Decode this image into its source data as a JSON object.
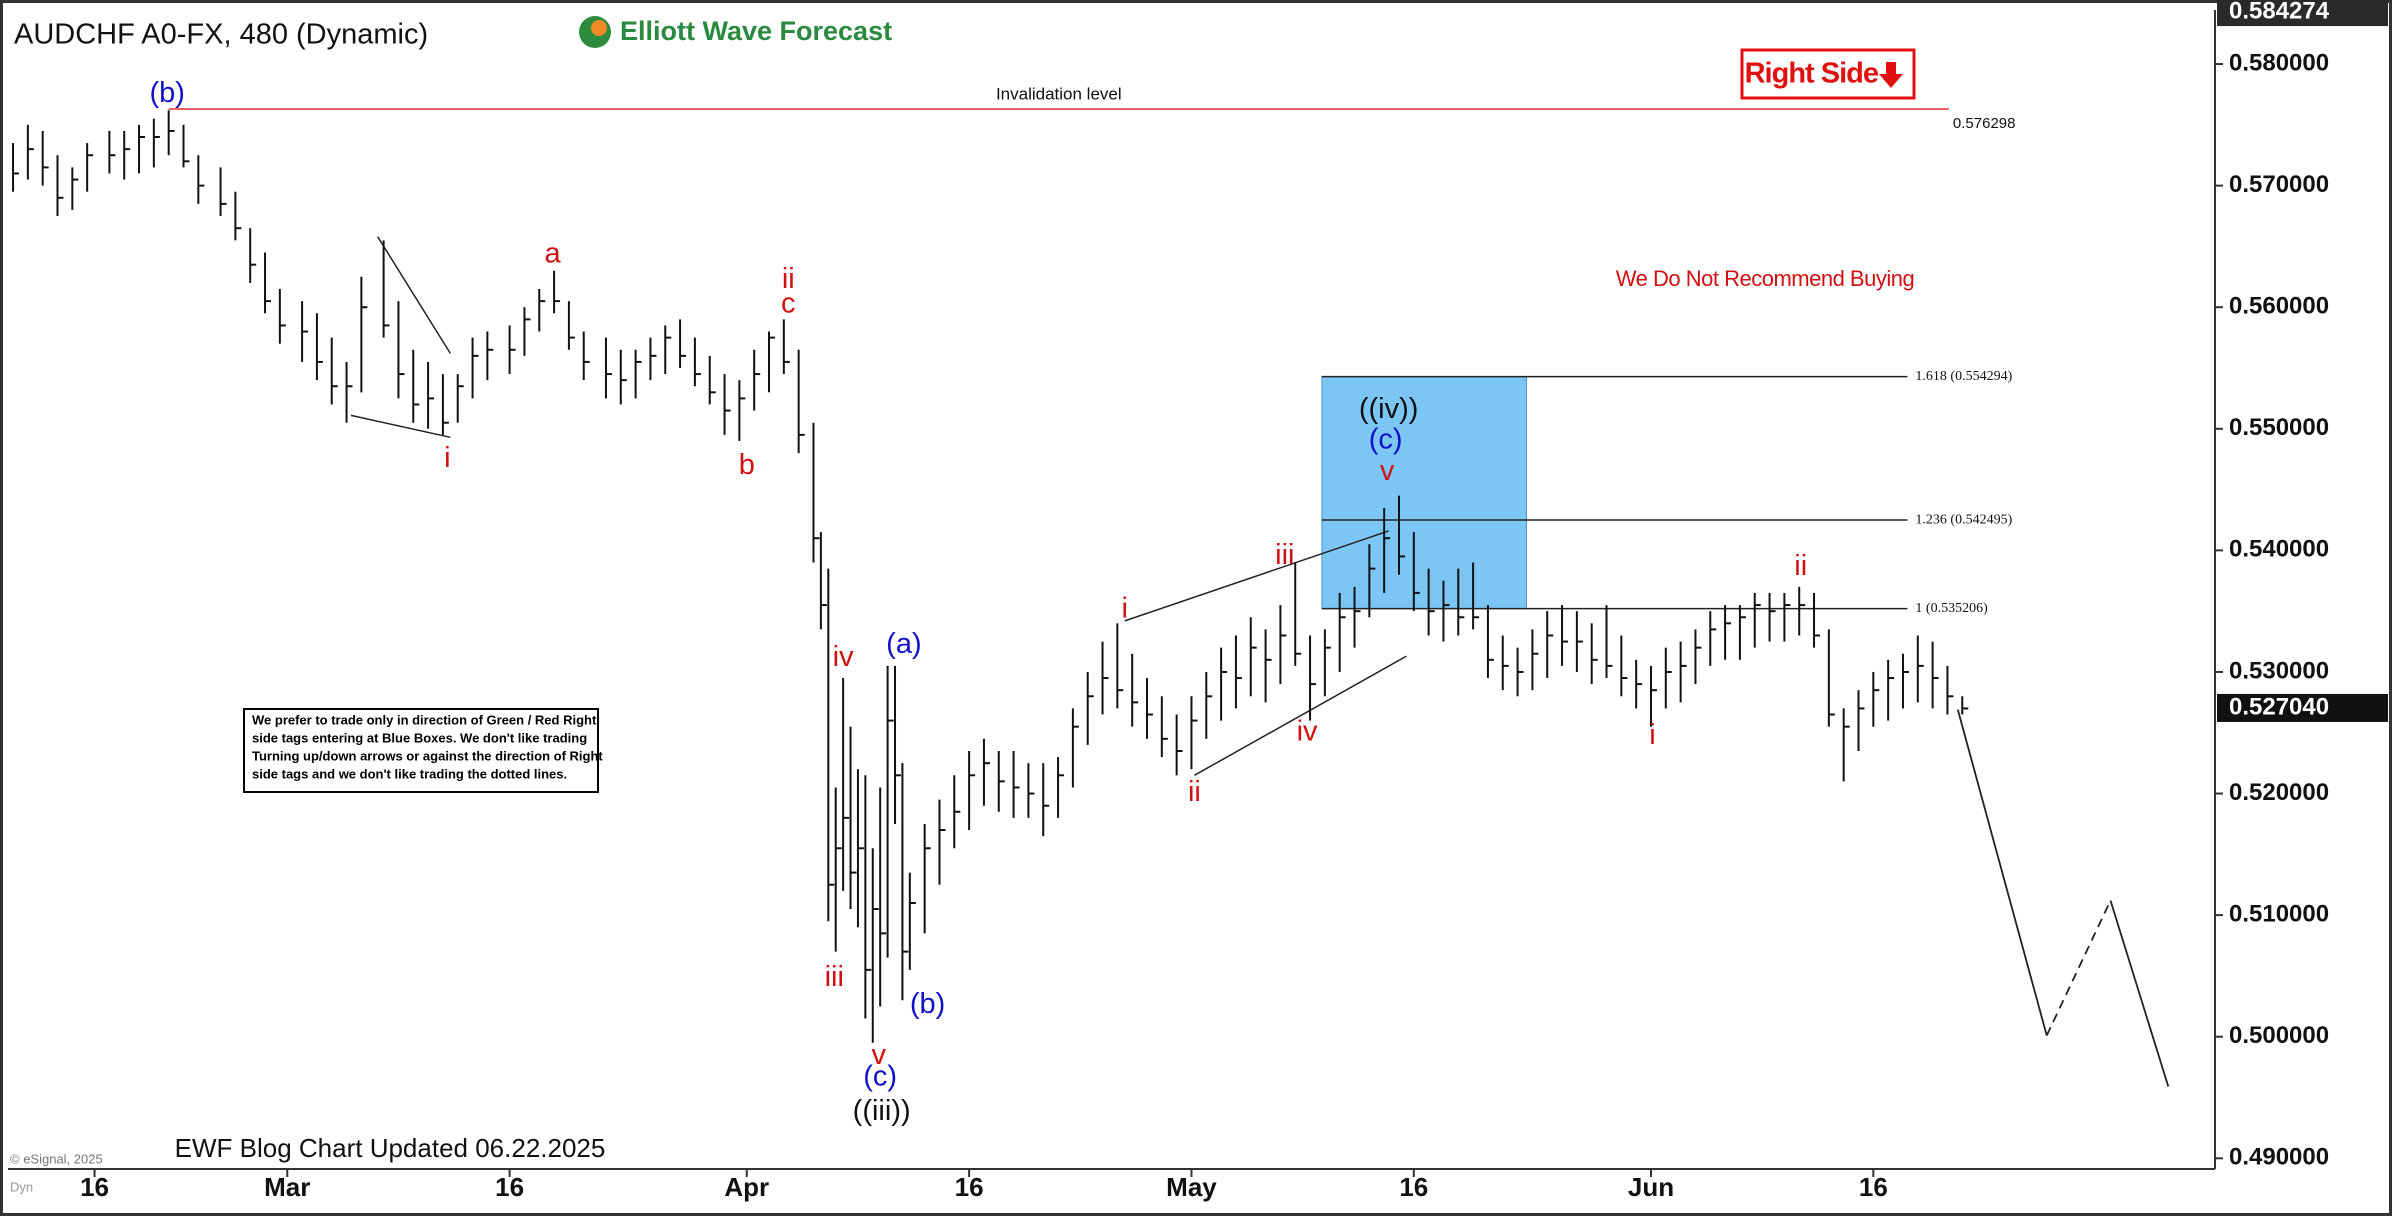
{
  "chart_data": {
    "type": "ohlc",
    "title": "AUDCHF A0-FX, 480 (Dynamic)",
    "logo": "Elliott Wave Forecast",
    "tag": "Right Side",
    "warning": "We Do Not Recommend Buying",
    "footer": "EWF Blog Chart Updated 06.22.2025",
    "copyright": "© eSignal, 2025",
    "corner": "Dyn",
    "note": {
      "lines": [
        "We prefer to trade only in direction of Green / Red Right",
        "side tags entering at Blue Boxes. We don't like trading",
        "Turning up/down arrows or against the direction of Right",
        "side tags and we don't like trading the dotted lines.",
        ""
      ]
    },
    "xlim": [
      41.16,
      190.05
    ],
    "ylim": [
      0.48912,
      0.58428
    ],
    "xticks": [
      {
        "value": 47,
        "label": "16"
      },
      {
        "value": 60,
        "label": "Mar"
      },
      {
        "value": 75,
        "label": "16"
      },
      {
        "value": 91,
        "label": "Apr"
      },
      {
        "value": 106,
        "label": "16"
      },
      {
        "value": 121,
        "label": "May"
      },
      {
        "value": 136,
        "label": "16"
      },
      {
        "value": 152,
        "label": "Jun"
      },
      {
        "value": 167,
        "label": "16"
      }
    ],
    "yticks": [
      {
        "value": 0.49,
        "label": "0.490000"
      },
      {
        "value": 0.5,
        "label": "0.500000"
      },
      {
        "value": 0.51,
        "label": "0.510000"
      },
      {
        "value": 0.52,
        "label": "0.520000"
      },
      {
        "value": 0.53,
        "label": "0.530000"
      },
      {
        "value": 0.54,
        "label": "0.540000"
      },
      {
        "value": 0.55,
        "label": "0.550000"
      },
      {
        "value": 0.56,
        "label": "0.560000"
      },
      {
        "value": 0.57,
        "label": "0.570000"
      },
      {
        "value": 0.58,
        "label": "0.580000"
      }
    ],
    "top_price": 0.584274,
    "last_price": {
      "value": 0.52704,
      "label": "0.527040"
    },
    "bar_color": "#111111",
    "bars": {
      "x": [
        41.5,
        42.5,
        43.5,
        44.5,
        45.5,
        46.5,
        48,
        49,
        50,
        51,
        52,
        53,
        54,
        55.5,
        56.5,
        57.5,
        58.5,
        59.5,
        61,
        62,
        63,
        64,
        65,
        66.5,
        67.5,
        68.5,
        69.5,
        70.5,
        71.5,
        72.5,
        73.5,
        75,
        76,
        77,
        78,
        79,
        80,
        81.5,
        82.5,
        83.5,
        84.5,
        85.5,
        86.5,
        87.5,
        88.5,
        89.5,
        90.5,
        91.5,
        92.5,
        93.5,
        94.5,
        95.5,
        96,
        96.5,
        97,
        97.5,
        98,
        98.5,
        99,
        99.5,
        100,
        100.5,
        101,
        101.5,
        102,
        103,
        104,
        105,
        106,
        107,
        108,
        109,
        110,
        111,
        112,
        113,
        114,
        115,
        116,
        117,
        118,
        119,
        120,
        121,
        122,
        123,
        124,
        125,
        126,
        127,
        128,
        129,
        130,
        131,
        132,
        133,
        134,
        135,
        136,
        137,
        138,
        139,
        140,
        141,
        142,
        143,
        144,
        145,
        146,
        147,
        148,
        149,
        150,
        151,
        152,
        153,
        154,
        155,
        156,
        157,
        158,
        159,
        160,
        161,
        162,
        163,
        164,
        165,
        166,
        167,
        168,
        169,
        170,
        171,
        172,
        173
      ],
      "high": [
        0.5735,
        0.575,
        0.5745,
        0.5725,
        0.5715,
        0.5735,
        0.5745,
        0.5745,
        0.575,
        0.5755,
        0.5762,
        0.575,
        0.5725,
        0.5715,
        0.5695,
        0.5665,
        0.5645,
        0.5615,
        0.5605,
        0.5595,
        0.5575,
        0.5555,
        0.5625,
        0.5655,
        0.5605,
        0.5565,
        0.5555,
        0.5545,
        0.5545,
        0.5575,
        0.558,
        0.5585,
        0.56,
        0.5615,
        0.563,
        0.5605,
        0.558,
        0.5575,
        0.5565,
        0.5565,
        0.5575,
        0.5585,
        0.559,
        0.5575,
        0.556,
        0.5545,
        0.554,
        0.5565,
        0.558,
        0.559,
        0.5565,
        0.5505,
        0.5415,
        0.5385,
        0.5205,
        0.5295,
        0.5255,
        0.522,
        0.5215,
        0.5155,
        0.5205,
        0.5305,
        0.5305,
        0.5225,
        0.5135,
        0.5175,
        0.5195,
        0.5215,
        0.5235,
        0.5245,
        0.5235,
        0.5235,
        0.5225,
        0.5225,
        0.523,
        0.527,
        0.53,
        0.5325,
        0.534,
        0.5315,
        0.5295,
        0.528,
        0.5265,
        0.528,
        0.53,
        0.532,
        0.533,
        0.5345,
        0.5335,
        0.5355,
        0.539,
        0.533,
        0.5335,
        0.5365,
        0.537,
        0.5405,
        0.5435,
        0.5445,
        0.5415,
        0.5385,
        0.5375,
        0.5385,
        0.539,
        0.5355,
        0.533,
        0.532,
        0.5335,
        0.535,
        0.5355,
        0.535,
        0.534,
        0.5355,
        0.533,
        0.531,
        0.5305,
        0.532,
        0.5325,
        0.5335,
        0.535,
        0.5355,
        0.5355,
        0.5365,
        0.5365,
        0.5365,
        0.537,
        0.5365,
        0.5335,
        0.527,
        0.5285,
        0.53,
        0.531,
        0.5315,
        0.533,
        0.5325,
        0.5305,
        0.528
      ],
      "low": [
        0.5695,
        0.5705,
        0.57,
        0.5675,
        0.568,
        0.5695,
        0.571,
        0.5705,
        0.571,
        0.5715,
        0.5725,
        0.5715,
        0.5685,
        0.5675,
        0.5655,
        0.562,
        0.5595,
        0.557,
        0.5555,
        0.554,
        0.552,
        0.5505,
        0.553,
        0.5575,
        0.5525,
        0.5505,
        0.55,
        0.5495,
        0.5505,
        0.5525,
        0.554,
        0.5545,
        0.556,
        0.558,
        0.5595,
        0.5565,
        0.554,
        0.5525,
        0.552,
        0.5525,
        0.554,
        0.5545,
        0.555,
        0.5535,
        0.552,
        0.5495,
        0.549,
        0.5515,
        0.553,
        0.5545,
        0.548,
        0.539,
        0.5335,
        0.5095,
        0.507,
        0.512,
        0.5105,
        0.509,
        0.5015,
        0.4995,
        0.5025,
        0.5065,
        0.5175,
        0.503,
        0.5055,
        0.5085,
        0.5125,
        0.5155,
        0.517,
        0.519,
        0.5185,
        0.518,
        0.518,
        0.5165,
        0.518,
        0.5205,
        0.524,
        0.5265,
        0.527,
        0.5255,
        0.5245,
        0.523,
        0.5215,
        0.522,
        0.5245,
        0.526,
        0.527,
        0.528,
        0.5275,
        0.529,
        0.5305,
        0.526,
        0.528,
        0.53,
        0.532,
        0.5345,
        0.5365,
        0.538,
        0.535,
        0.533,
        0.5325,
        0.533,
        0.5335,
        0.5295,
        0.5285,
        0.528,
        0.5285,
        0.5295,
        0.5305,
        0.53,
        0.529,
        0.5295,
        0.528,
        0.527,
        0.5255,
        0.527,
        0.5275,
        0.529,
        0.5305,
        0.531,
        0.531,
        0.532,
        0.5325,
        0.5325,
        0.533,
        0.532,
        0.5255,
        0.521,
        0.5235,
        0.5255,
        0.526,
        0.527,
        0.5275,
        0.527,
        0.5265,
        0.5265
      ],
      "close": [
        0.571,
        0.573,
        0.5715,
        0.569,
        0.5705,
        0.5725,
        0.5725,
        0.573,
        0.574,
        0.574,
        0.5745,
        0.572,
        0.57,
        0.5685,
        0.5665,
        0.5635,
        0.5605,
        0.5585,
        0.558,
        0.5555,
        0.5535,
        0.5535,
        0.56,
        0.5585,
        0.5545,
        0.552,
        0.5525,
        0.5505,
        0.5535,
        0.556,
        0.5565,
        0.5565,
        0.559,
        0.5605,
        0.5605,
        0.5575,
        0.5555,
        0.5545,
        0.554,
        0.5555,
        0.556,
        0.5575,
        0.556,
        0.5545,
        0.553,
        0.5515,
        0.5525,
        0.5545,
        0.5575,
        0.5555,
        0.5495,
        0.541,
        0.5355,
        0.5125,
        0.5155,
        0.518,
        0.5135,
        0.5155,
        0.5055,
        0.5105,
        0.5085,
        0.526,
        0.5215,
        0.507,
        0.511,
        0.5155,
        0.517,
        0.5185,
        0.5215,
        0.5225,
        0.521,
        0.5205,
        0.52,
        0.519,
        0.5215,
        0.5255,
        0.528,
        0.5295,
        0.5285,
        0.5275,
        0.5265,
        0.5245,
        0.5235,
        0.526,
        0.528,
        0.53,
        0.5295,
        0.532,
        0.531,
        0.533,
        0.5315,
        0.529,
        0.532,
        0.5345,
        0.535,
        0.5385,
        0.541,
        0.5395,
        0.5365,
        0.535,
        0.5355,
        0.5345,
        0.5345,
        0.531,
        0.5305,
        0.53,
        0.5315,
        0.533,
        0.5325,
        0.5325,
        0.531,
        0.5305,
        0.5295,
        0.529,
        0.5285,
        0.53,
        0.5305,
        0.532,
        0.5335,
        0.534,
        0.5345,
        0.5355,
        0.535,
        0.5355,
        0.5355,
        0.533,
        0.5265,
        0.5255,
        0.527,
        0.5285,
        0.5295,
        0.53,
        0.5305,
        0.5295,
        0.528,
        0.527
      ]
    },
    "invalidation": {
      "text": "Invalidation level",
      "value": 0.576298,
      "x": [
        52,
        172.1
      ],
      "color": "#e03030"
    },
    "box": {
      "x": [
        129.8,
        143.6
      ],
      "y": [
        0.535206,
        0.554294
      ],
      "color": "#7cc6f6"
    },
    "fibs": [
      {
        "value": 0.554294,
        "label": "1.618 (0.554294)",
        "x": [
          129.8,
          169.3
        ]
      },
      {
        "value": 0.542495,
        "label": "1.236 (0.542495)",
        "x": [
          129.8,
          169.3
        ]
      },
      {
        "value": 0.535206,
        "label": "1 (0.535206)",
        "x": [
          129.8,
          169.3
        ]
      }
    ],
    "trendlines": [
      {
        "x": [
          64.3,
          71.0
        ],
        "y": [
          0.5511,
          0.5493
        ]
      },
      {
        "x": [
          66.1,
          71.0
        ],
        "y": [
          0.5658,
          0.5562
        ]
      },
      {
        "x": [
          116.5,
          134.3
        ],
        "y": [
          0.5342,
          0.5416
        ]
      },
      {
        "x": [
          121.2,
          135.5
        ],
        "y": [
          0.5215,
          0.5313
        ]
      }
    ],
    "projection": {
      "x": [
        172.7,
        178.7,
        183.0,
        186.9
      ],
      "y": [
        0.5269,
        0.5001,
        0.5112,
        0.4959
      ],
      "dashed": [
        false,
        true,
        false
      ]
    },
    "annotations": [
      {
        "text": "(b)",
        "x": 51.9,
        "y": 0.5775,
        "color": "#1010c8"
      },
      {
        "text": "i",
        "x": 70.8,
        "y": 0.5475,
        "color": "#d01010"
      },
      {
        "text": "a",
        "x": 77.9,
        "y": 0.5643,
        "color": "#d01010"
      },
      {
        "text": "ii",
        "x": 93.8,
        "y": 0.5622,
        "color": "#d01010"
      },
      {
        "text": "c",
        "x": 93.8,
        "y": 0.5602,
        "color": "#d01010"
      },
      {
        "text": "b",
        "x": 91.0,
        "y": 0.5469,
        "color": "#d01010"
      },
      {
        "text": "iii",
        "x": 96.9,
        "y": 0.5048,
        "color": "#d01010"
      },
      {
        "text": "iv",
        "x": 97.5,
        "y": 0.5311,
        "color": "#d01010"
      },
      {
        "text": "v",
        "x": 99.9,
        "y": 0.4984,
        "color": "#d01010"
      },
      {
        "text": "(c)",
        "x": 100.0,
        "y": 0.4966,
        "color": "#1010c8"
      },
      {
        "text": "((iii))",
        "x": 100.1,
        "y": 0.4938,
        "color": "#111111"
      },
      {
        "text": "(a)",
        "x": 101.6,
        "y": 0.5322,
        "color": "#1010c8"
      },
      {
        "text": "(b)",
        "x": 103.2,
        "y": 0.5026,
        "color": "#1010c8"
      },
      {
        "text": "i",
        "x": 116.5,
        "y": 0.5351,
        "color": "#d01010"
      },
      {
        "text": "ii",
        "x": 121.2,
        "y": 0.52,
        "color": "#d01010"
      },
      {
        "text": "iii",
        "x": 127.3,
        "y": 0.5395,
        "color": "#d01010"
      },
      {
        "text": "iv",
        "x": 128.8,
        "y": 0.525,
        "color": "#d01010"
      },
      {
        "text": "v",
        "x": 134.2,
        "y": 0.5464,
        "color": "#d01010"
      },
      {
        "text": "(c)",
        "x": 134.1,
        "y": 0.549,
        "color": "#1010c8"
      },
      {
        "text": "((iv))",
        "x": 134.3,
        "y": 0.5515,
        "color": "#111111"
      },
      {
        "text": "i",
        "x": 152.1,
        "y": 0.5247,
        "color": "#d01010"
      },
      {
        "text": "ii",
        "x": 162.1,
        "y": 0.5386,
        "color": "#d01010"
      }
    ]
  }
}
